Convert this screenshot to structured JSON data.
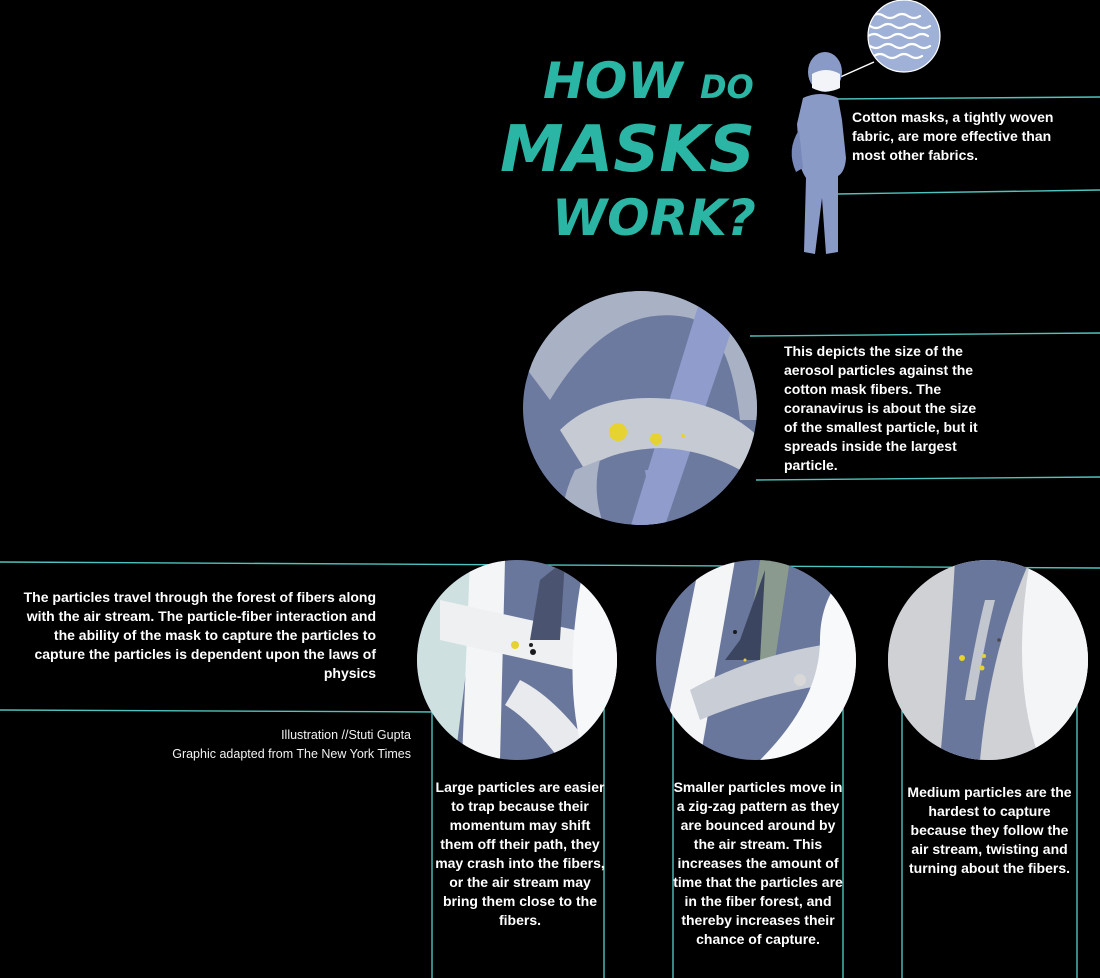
{
  "title": {
    "line1_big": "HOW",
    "line1_small": "DO",
    "line2": "MASKS",
    "line3": "WORK?"
  },
  "captions": {
    "figure": "Cotton masks, a tightly woven fabric, are more effective than most other fabrics.",
    "aerosol": "This depicts the size of the aerosol particles against the cotton mask fibers. The coranavirus is about the size of the smallest particle, but it  spreads inside the largest particle.",
    "travel": "The particles travel through the forest of fibers along with the air stream. The particle-fiber interaction and the ability of the mask to capture the particles to capture the particles is dependent upon the laws of physics",
    "large": "Large particles are easier to trap because their momentum may shift them off their path, they may crash into the fibers, or the air stream may bring them close to the fibers.",
    "small": "Smaller particles move in a zig-zag pattern as they are bounced around by the air stream. This increases the amount of time that the particles are in the fiber forest, and thereby increases their chance of capture.",
    "medium": "Medium particles are the hardest to capture because they follow the air stream, twisting and turning about the fibers."
  },
  "credits": {
    "illustration": "Illustration //Stuti Gupta",
    "source": "Graphic adapted from The New York Times"
  },
  "colors": {
    "title_teal": "#2bb5a4",
    "guide_line": "#4fc3bd",
    "figure_blue": "#8a9ac7",
    "fiber_slate": "#6a779c",
    "fiber_white": "#f4f5f7",
    "particle_yellow": "#e6d230",
    "background": "#000000"
  }
}
